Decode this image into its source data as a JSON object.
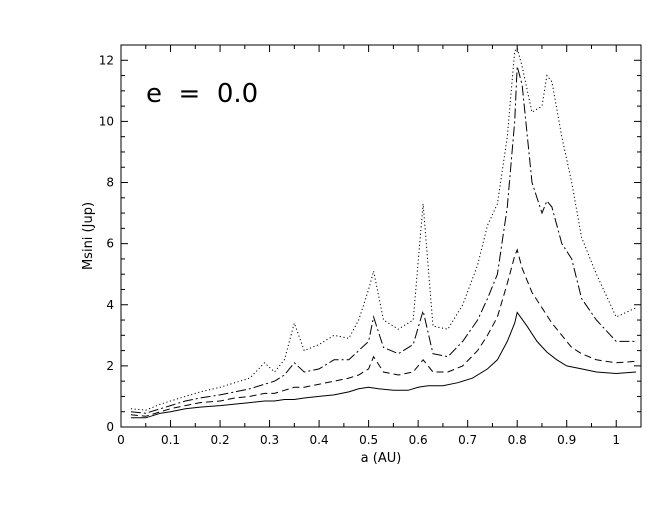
{
  "chart_data": {
    "type": "line",
    "title": "",
    "xlabel": "a (AU)",
    "ylabel": "Msini (Jup)",
    "annotation": "e  =  0.0",
    "xlim": [
      0,
      1.05
    ],
    "ylim": [
      0,
      12.5
    ],
    "xticks": [
      0,
      0.1,
      0.2,
      0.3,
      0.4,
      0.5,
      0.6,
      0.7,
      0.8,
      0.9,
      1
    ],
    "xtick_labels": [
      "0",
      "0.1",
      "0.2",
      "0.3",
      "0.4",
      "0.5",
      "0.6",
      "0.7",
      "0.8",
      "0.9",
      "1"
    ],
    "yticks": [
      0,
      2,
      4,
      6,
      8,
      10,
      12
    ],
    "ytick_labels": [
      "0",
      "2",
      "4",
      "6",
      "8",
      "10",
      "12"
    ],
    "grid": false,
    "legend": "none",
    "series": [
      {
        "style": "solid",
        "x": [
          0.02,
          0.05,
          0.08,
          0.1,
          0.13,
          0.16,
          0.2,
          0.23,
          0.26,
          0.29,
          0.31,
          0.33,
          0.35,
          0.37,
          0.4,
          0.43,
          0.46,
          0.48,
          0.5,
          0.52,
          0.55,
          0.58,
          0.6,
          0.62,
          0.65,
          0.68,
          0.71,
          0.74,
          0.76,
          0.78,
          0.795,
          0.8,
          0.82,
          0.84,
          0.86,
          0.88,
          0.9,
          0.93,
          0.96,
          1.0,
          1.04
        ],
        "y": [
          0.3,
          0.3,
          0.45,
          0.5,
          0.6,
          0.65,
          0.7,
          0.75,
          0.8,
          0.85,
          0.85,
          0.9,
          0.9,
          0.95,
          1.0,
          1.05,
          1.15,
          1.25,
          1.3,
          1.25,
          1.2,
          1.2,
          1.3,
          1.35,
          1.35,
          1.45,
          1.6,
          1.9,
          2.2,
          2.8,
          3.4,
          3.75,
          3.3,
          2.8,
          2.45,
          2.2,
          2.0,
          1.9,
          1.8,
          1.75,
          1.8
        ]
      },
      {
        "style": "dashed",
        "x": [
          0.02,
          0.05,
          0.08,
          0.1,
          0.13,
          0.16,
          0.2,
          0.23,
          0.26,
          0.29,
          0.31,
          0.33,
          0.35,
          0.37,
          0.4,
          0.43,
          0.46,
          0.48,
          0.5,
          0.51,
          0.53,
          0.56,
          0.59,
          0.61,
          0.63,
          0.66,
          0.69,
          0.72,
          0.74,
          0.76,
          0.78,
          0.795,
          0.8,
          0.81,
          0.83,
          0.85,
          0.87,
          0.89,
          0.91,
          0.93,
          0.96,
          1.0,
          1.04
        ],
        "y": [
          0.4,
          0.35,
          0.5,
          0.6,
          0.7,
          0.8,
          0.85,
          0.95,
          1.0,
          1.1,
          1.1,
          1.2,
          1.3,
          1.3,
          1.4,
          1.5,
          1.6,
          1.7,
          1.9,
          2.3,
          1.8,
          1.7,
          1.8,
          2.2,
          1.8,
          1.8,
          2.0,
          2.5,
          3.0,
          3.6,
          4.7,
          5.6,
          5.8,
          5.2,
          4.4,
          3.9,
          3.4,
          3.0,
          2.6,
          2.4,
          2.2,
          2.1,
          2.15
        ]
      },
      {
        "style": "dash-dot",
        "x": [
          0.02,
          0.05,
          0.08,
          0.1,
          0.13,
          0.16,
          0.2,
          0.23,
          0.26,
          0.29,
          0.31,
          0.33,
          0.35,
          0.37,
          0.4,
          0.43,
          0.46,
          0.48,
          0.5,
          0.51,
          0.53,
          0.56,
          0.59,
          0.61,
          0.63,
          0.66,
          0.69,
          0.72,
          0.74,
          0.76,
          0.78,
          0.795,
          0.8,
          0.81,
          0.83,
          0.85,
          0.86,
          0.87,
          0.89,
          0.91,
          0.93,
          0.96,
          1.0,
          1.04
        ],
        "y": [
          0.5,
          0.45,
          0.6,
          0.7,
          0.85,
          0.95,
          1.05,
          1.15,
          1.25,
          1.4,
          1.5,
          1.7,
          2.1,
          1.8,
          1.9,
          2.2,
          2.2,
          2.5,
          2.8,
          3.6,
          2.6,
          2.4,
          2.7,
          3.8,
          2.4,
          2.3,
          2.8,
          3.5,
          4.2,
          5.0,
          7.2,
          10.0,
          11.8,
          11.2,
          8.0,
          7.0,
          7.4,
          7.2,
          6.0,
          5.5,
          4.2,
          3.5,
          2.8,
          2.8
        ]
      },
      {
        "style": "dotted",
        "x": [
          0.02,
          0.05,
          0.08,
          0.1,
          0.13,
          0.16,
          0.2,
          0.23,
          0.26,
          0.29,
          0.31,
          0.33,
          0.35,
          0.37,
          0.4,
          0.43,
          0.46,
          0.48,
          0.5,
          0.51,
          0.53,
          0.56,
          0.59,
          0.61,
          0.63,
          0.66,
          0.69,
          0.72,
          0.74,
          0.76,
          0.78,
          0.795,
          0.8,
          0.81,
          0.83,
          0.85,
          0.86,
          0.87,
          0.89,
          0.91,
          0.93,
          0.96,
          1.0,
          1.04
        ],
        "y": [
          0.6,
          0.55,
          0.75,
          0.85,
          1.0,
          1.15,
          1.3,
          1.45,
          1.6,
          2.1,
          1.8,
          2.2,
          3.4,
          2.5,
          2.7,
          3.0,
          2.9,
          3.5,
          4.5,
          5.1,
          3.5,
          3.2,
          3.5,
          7.3,
          3.3,
          3.2,
          4.0,
          5.3,
          6.6,
          7.3,
          9.5,
          12.3,
          12.4,
          11.8,
          10.3,
          10.5,
          11.5,
          11.3,
          9.5,
          8.0,
          6.2,
          5.0,
          3.6,
          3.9
        ]
      }
    ]
  }
}
